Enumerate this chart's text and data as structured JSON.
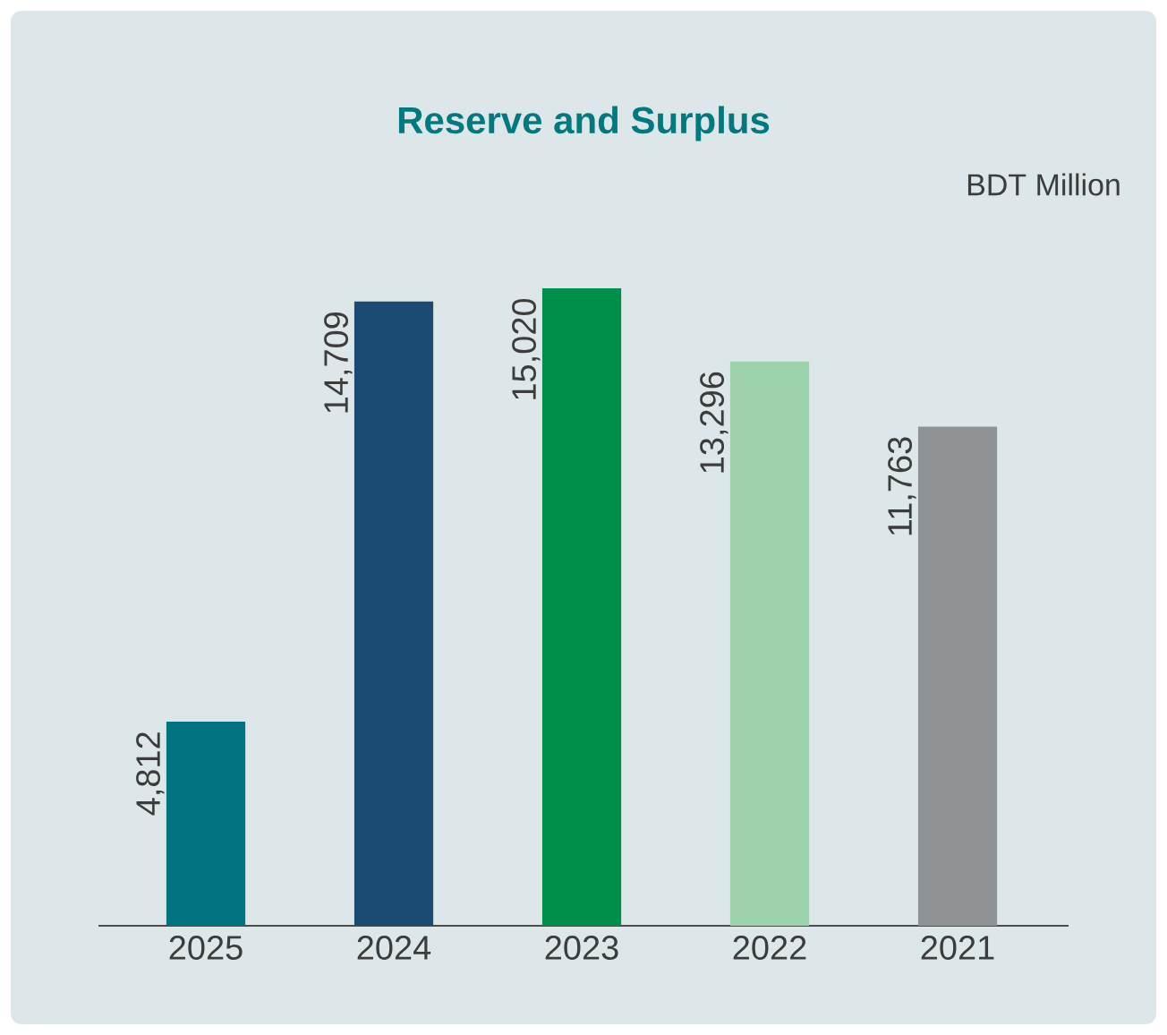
{
  "chart_data": {
    "type": "bar",
    "title": "Reserve and Surplus",
    "subtitle": "BDT Million",
    "categories": [
      "2025",
      "2024",
      "2023",
      "2022",
      "2021"
    ],
    "values": [
      4812,
      14709,
      15020,
      13296,
      11763
    ],
    "value_labels": [
      "4,812",
      "14,709",
      "15,020",
      "13,296",
      "11,763"
    ],
    "colors": [
      "#007480",
      "#1b4a72",
      "#008f4a",
      "#9dd3ac",
      "#909396"
    ]
  }
}
